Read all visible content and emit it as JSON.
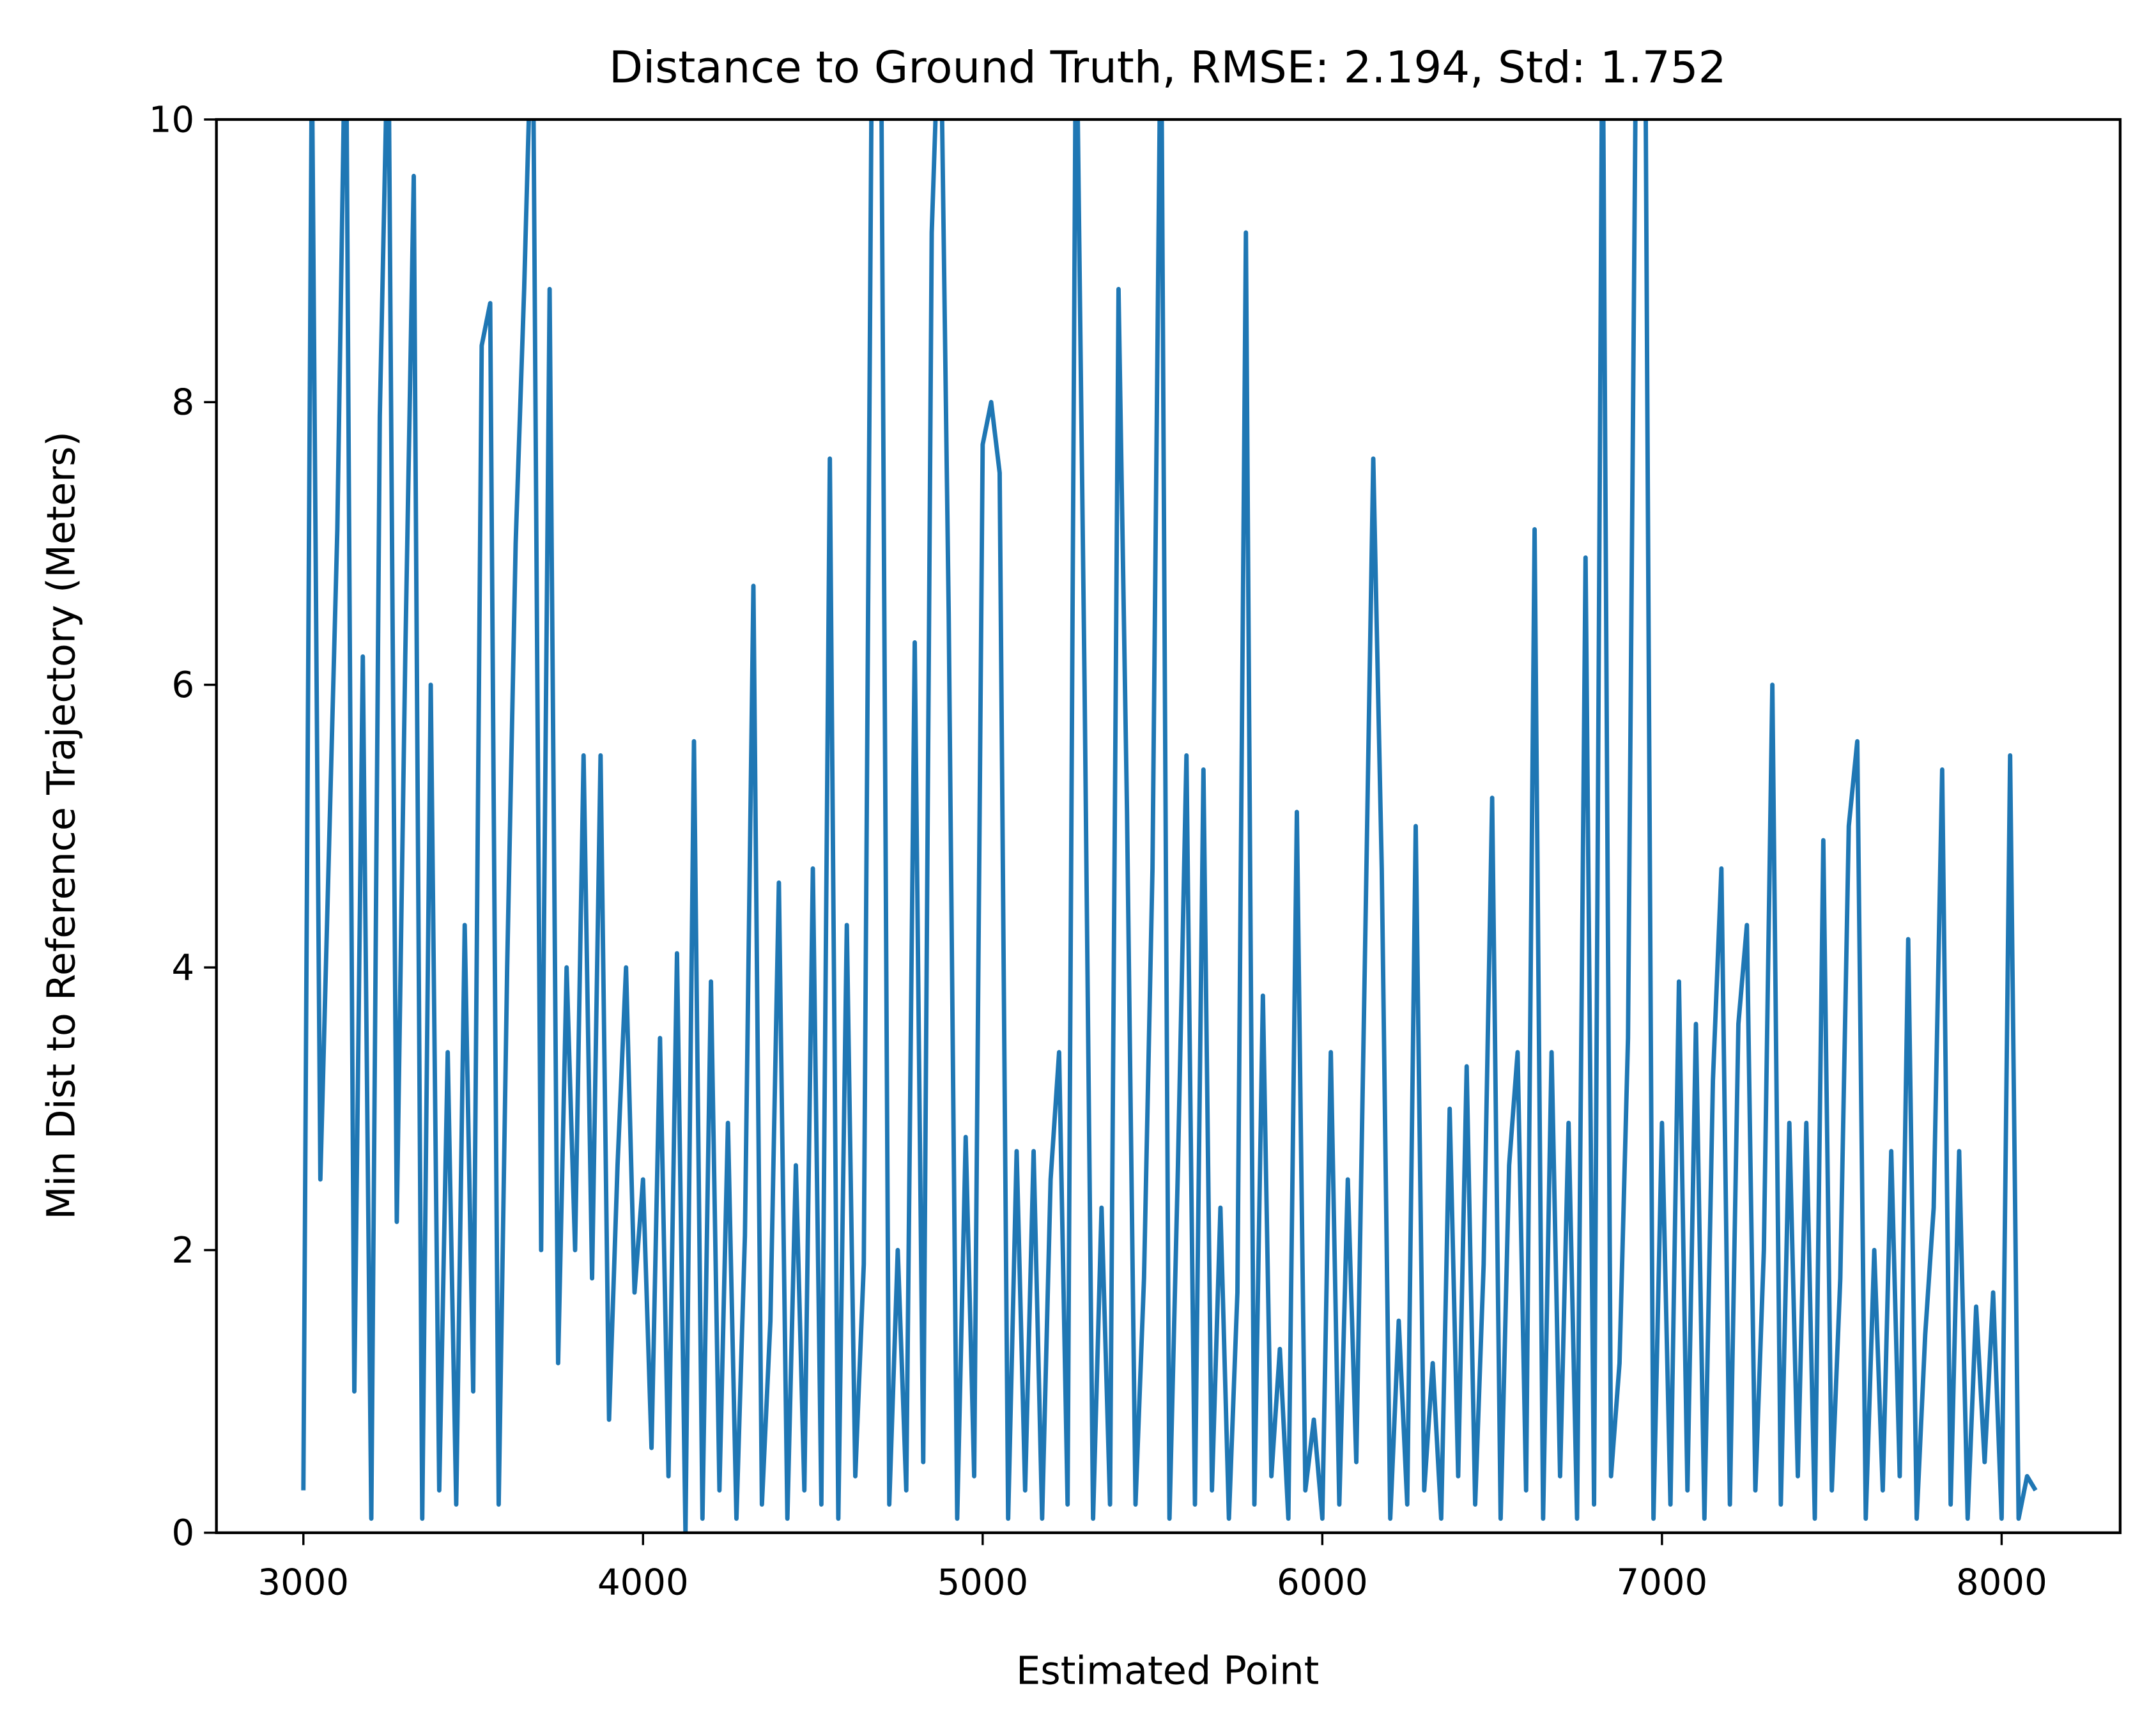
{
  "chart_data": {
    "type": "line",
    "title": "Distance to Ground Truth, RMSE: 2.194, Std: 1.752",
    "xlabel": "Estimated Point",
    "ylabel": "Min Dist to Reference Trajectory (Meters)",
    "xlim": [
      2744,
      8349
    ],
    "ylim": [
      0,
      10
    ],
    "xticks": [
      3000,
      4000,
      5000,
      6000,
      7000,
      8000
    ],
    "yticks": [
      0,
      2,
      4,
      6,
      8,
      10
    ],
    "grid": false,
    "series": [
      {
        "name": "distance",
        "color": "#1f77b4",
        "x": [
          3000,
          3025,
          3050,
          3075,
          3100,
          3125,
          3150,
          3175,
          3200,
          3225,
          3250,
          3275,
          3300,
          3325,
          3350,
          3375,
          3400,
          3425,
          3450,
          3475,
          3500,
          3525,
          3550,
          3575,
          3600,
          3625,
          3650,
          3675,
          3700,
          3725,
          3750,
          3775,
          3800,
          3825,
          3850,
          3875,
          3900,
          3925,
          3950,
          3975,
          4000,
          4025,
          4050,
          4075,
          4100,
          4125,
          4150,
          4175,
          4200,
          4225,
          4250,
          4275,
          4300,
          4325,
          4350,
          4375,
          4400,
          4425,
          4450,
          4475,
          4500,
          4525,
          4550,
          4575,
          4600,
          4625,
          4650,
          4675,
          4700,
          4725,
          4750,
          4775,
          4800,
          4825,
          4850,
          4875,
          4900,
          4925,
          4950,
          4975,
          5000,
          5025,
          5050,
          5075,
          5100,
          5125,
          5150,
          5175,
          5200,
          5225,
          5250,
          5275,
          5300,
          5325,
          5350,
          5375,
          5400,
          5425,
          5450,
          5475,
          5500,
          5525,
          5550,
          5575,
          5600,
          5625,
          5650,
          5675,
          5700,
          5725,
          5750,
          5775,
          5800,
          5825,
          5850,
          5875,
          5900,
          5925,
          5950,
          5975,
          6000,
          6025,
          6050,
          6075,
          6100,
          6125,
          6150,
          6175,
          6200,
          6225,
          6250,
          6275,
          6300,
          6325,
          6350,
          6375,
          6400,
          6425,
          6450,
          6475,
          6500,
          6525,
          6550,
          6575,
          6600,
          6625,
          6650,
          6675,
          6700,
          6725,
          6750,
          6775,
          6800,
          6825,
          6850,
          6875,
          6900,
          6925,
          6950,
          6975,
          7000,
          7025,
          7050,
          7075,
          7100,
          7125,
          7150,
          7175,
          7200,
          7225,
          7250,
          7275,
          7300,
          7325,
          7350,
          7375,
          7400,
          7425,
          7450,
          7475,
          7500,
          7525,
          7550,
          7575,
          7600,
          7625,
          7650,
          7675,
          7700,
          7725,
          7750,
          7775,
          7800,
          7825,
          7850,
          7875,
          7900,
          7925,
          7950,
          7975,
          8000,
          8025,
          8050,
          8075,
          8100
        ],
        "values": [
          0.3,
          10.5,
          2.5,
          4.8,
          7.1,
          11,
          1.0,
          6.2,
          0.1,
          7.9,
          10.8,
          2.2,
          6.2,
          9.6,
          0.1,
          6.0,
          0.3,
          3.4,
          0.2,
          4.3,
          1.0,
          8.4,
          8.7,
          0.2,
          4.0,
          7.0,
          8.8,
          11,
          2.0,
          8.8,
          1.2,
          4.0,
          2.0,
          5.5,
          1.8,
          5.5,
          0.8,
          2.6,
          4.0,
          1.7,
          2.5,
          0.6,
          3.5,
          0.4,
          4.1,
          0.0,
          5.6,
          0.1,
          3.9,
          0.3,
          2.9,
          0.1,
          2.1,
          6.7,
          0.2,
          1.5,
          4.6,
          0.1,
          2.6,
          0.3,
          4.7,
          0.2,
          7.6,
          0.1,
          4.3,
          0.4,
          1.9,
          11,
          11,
          0.2,
          2.0,
          0.3,
          6.3,
          0.5,
          9.2,
          11,
          6.5,
          0.1,
          2.8,
          0.4,
          7.7,
          8.0,
          7.5,
          0.1,
          2.7,
          0.3,
          2.7,
          0.1,
          2.5,
          3.4,
          0.2,
          11,
          6.0,
          0.1,
          2.3,
          0.2,
          8.8,
          5.1,
          0.2,
          1.8,
          4.7,
          11,
          0.1,
          2.6,
          5.5,
          0.2,
          5.4,
          0.3,
          2.3,
          0.1,
          1.7,
          9.2,
          0.2,
          3.8,
          0.4,
          1.3,
          0.1,
          5.1,
          0.3,
          0.8,
          0.1,
          3.4,
          0.2,
          2.5,
          0.5,
          4.0,
          7.6,
          4.7,
          0.1,
          1.5,
          0.2,
          5.0,
          0.3,
          1.2,
          0.1,
          3.0,
          0.4,
          3.3,
          0.2,
          1.9,
          5.2,
          0.1,
          2.6,
          3.4,
          0.3,
          7.1,
          0.1,
          3.4,
          0.4,
          2.9,
          0.1,
          6.9,
          0.2,
          11,
          0.4,
          1.2,
          3.5,
          11,
          11,
          0.1,
          2.9,
          0.2,
          3.9,
          0.3,
          3.6,
          0.1,
          3.2,
          4.7,
          0.2,
          3.6,
          4.3,
          0.3,
          2.0,
          6.0,
          0.2,
          2.9,
          0.4,
          2.9,
          0.1,
          4.9,
          0.3,
          1.8,
          5.0,
          5.6,
          0.1,
          2.0,
          0.3,
          2.7,
          0.4,
          4.2,
          0.1,
          1.4,
          2.3,
          5.4,
          0.2,
          2.7,
          0.1,
          1.6,
          0.5,
          1.7,
          0.1,
          5.5,
          0.1,
          0.4,
          0.3
        ]
      }
    ]
  }
}
